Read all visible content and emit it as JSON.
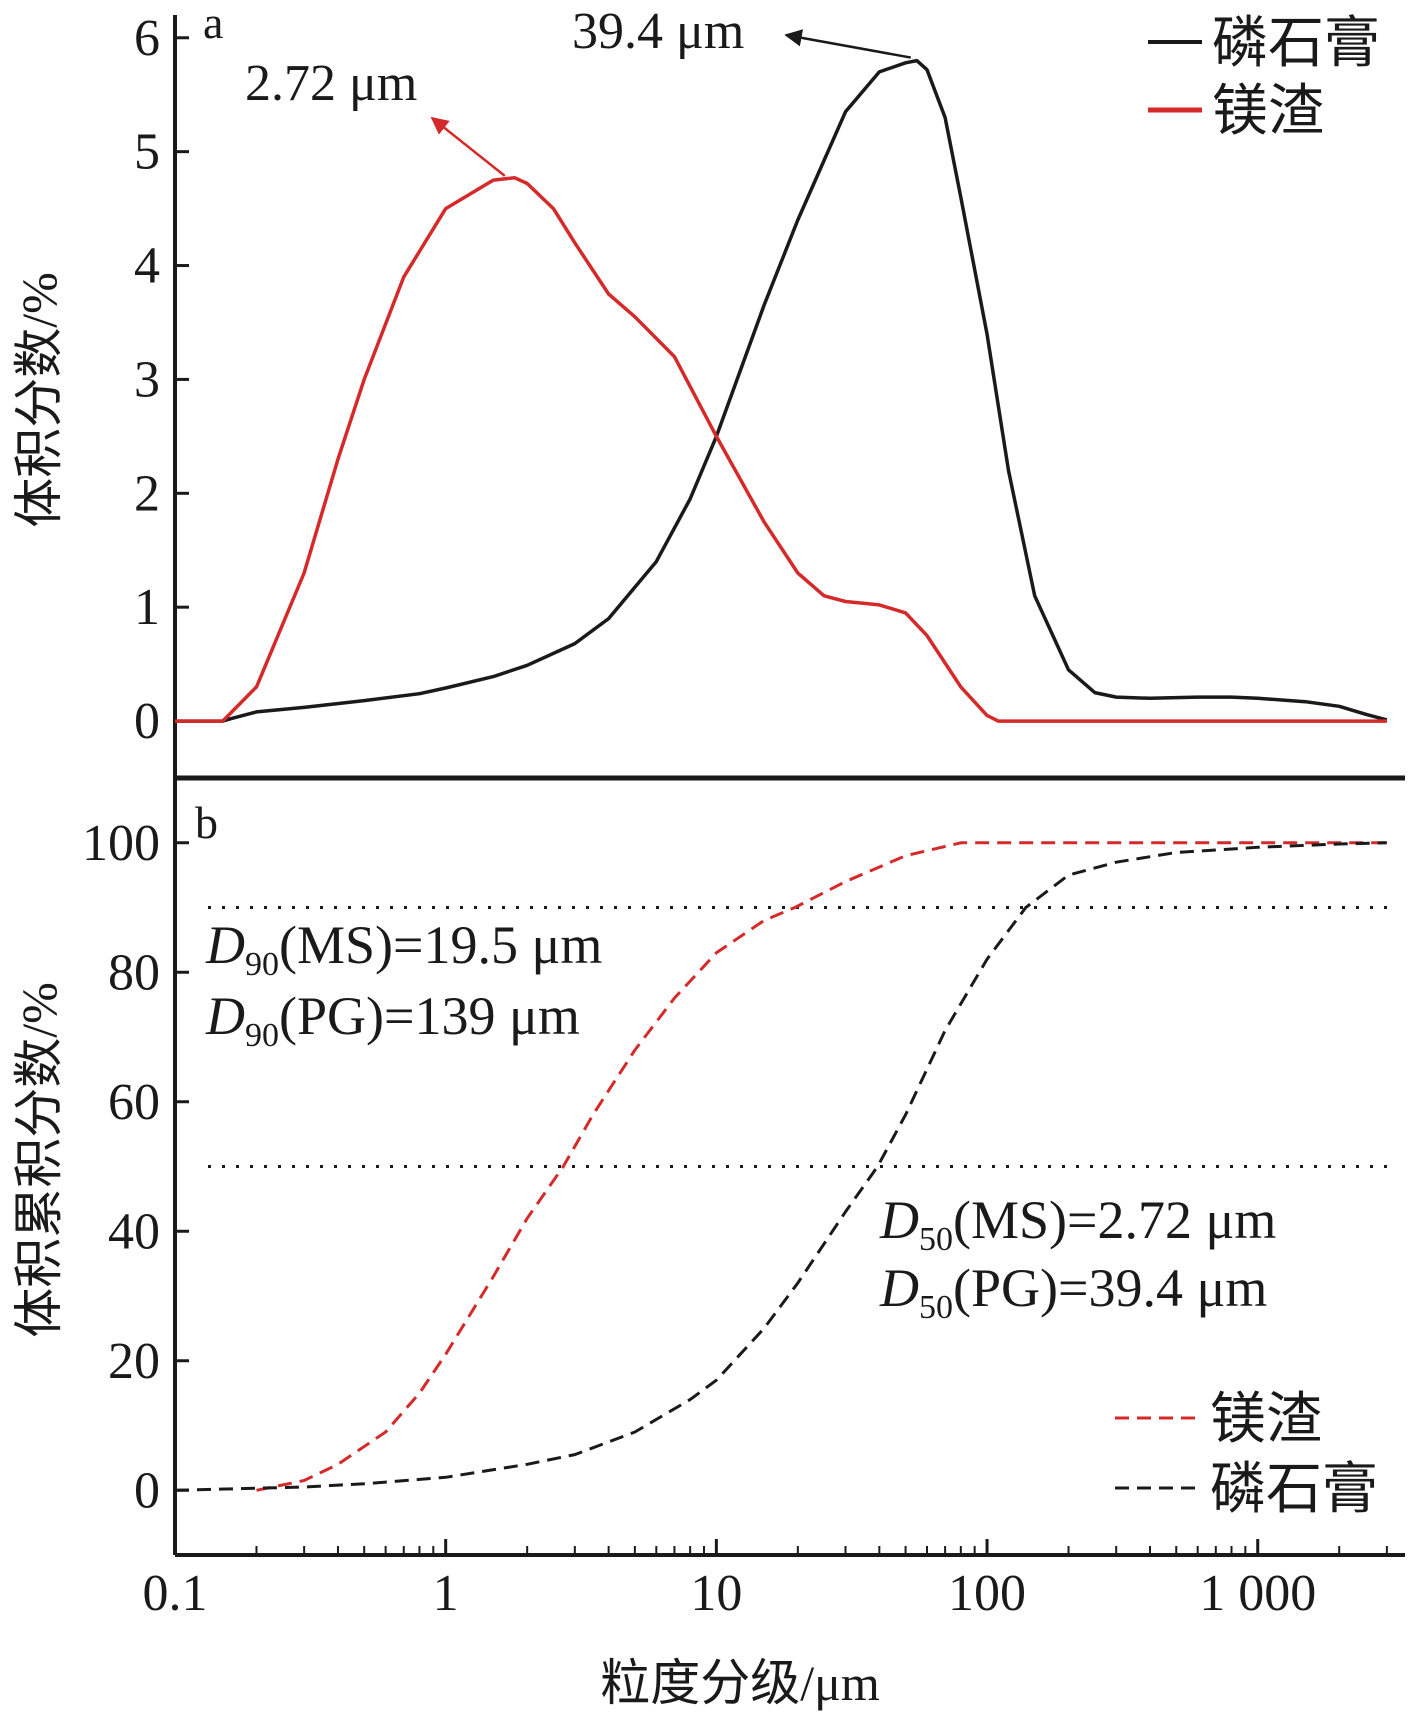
{
  "chart_data": [
    {
      "panel": "a",
      "type": "line",
      "x_scale": "log",
      "xlim": [
        0.1,
        3500
      ],
      "ylim": [
        -0.5,
        6.2
      ],
      "yticks": [
        0,
        1,
        2,
        3,
        4,
        5,
        6
      ],
      "ylabel": "体积分数/%",
      "legend_position": "top-right",
      "series": [
        {
          "name": "磷石膏",
          "color": "#1a1a1a",
          "style": "solid",
          "x": [
            0.1,
            0.15,
            0.16,
            0.2,
            0.3,
            0.5,
            0.8,
            1.0,
            1.5,
            2.0,
            3.0,
            4.0,
            6.0,
            8.0,
            10,
            15,
            20,
            30,
            40,
            50,
            55,
            60,
            70,
            80,
            100,
            120,
            150,
            200,
            250,
            300,
            400,
            600,
            800,
            1000,
            1500,
            2000,
            2500,
            3000
          ],
          "y": [
            0,
            0,
            0.02,
            0.08,
            0.12,
            0.18,
            0.24,
            0.29,
            0.39,
            0.49,
            0.68,
            0.9,
            1.4,
            1.95,
            2.5,
            3.65,
            4.4,
            5.35,
            5.7,
            5.78,
            5.8,
            5.72,
            5.3,
            4.6,
            3.4,
            2.2,
            1.1,
            0.45,
            0.25,
            0.21,
            0.2,
            0.21,
            0.21,
            0.2,
            0.17,
            0.13,
            0.06,
            0.01
          ]
        },
        {
          "name": "镁渣",
          "color": "#d42a2a",
          "style": "solid",
          "x": [
            0.1,
            0.15,
            0.2,
            0.3,
            0.4,
            0.5,
            0.7,
            1.0,
            1.5,
            1.8,
            2.0,
            2.5,
            3.0,
            4.0,
            5.0,
            7.0,
            10,
            15,
            20,
            25,
            30,
            40,
            50,
            60,
            80,
            100,
            110,
            150,
            300,
            1000,
            3000
          ],
          "y": [
            0,
            0,
            0.3,
            1.3,
            2.3,
            3.0,
            3.9,
            4.5,
            4.75,
            4.77,
            4.72,
            4.5,
            4.2,
            3.75,
            3.55,
            3.2,
            2.5,
            1.75,
            1.3,
            1.1,
            1.05,
            1.02,
            0.95,
            0.75,
            0.3,
            0.05,
            0,
            0,
            0,
            0,
            0
          ]
        }
      ],
      "annotations": [
        {
          "text": "2.72 μm",
          "target_x": 1.8,
          "target_y": 4.77,
          "color": "#d42a2a"
        },
        {
          "text": "39.4 μm",
          "target_x": 55,
          "target_y": 5.8,
          "color": "#1a1a1a"
        }
      ]
    },
    {
      "panel": "b",
      "type": "line",
      "x_scale": "log",
      "xlim": [
        0.1,
        3500
      ],
      "ylim": [
        -10,
        110
      ],
      "yticks": [
        0,
        20,
        40,
        60,
        80,
        100
      ],
      "xticks": [
        0.1,
        1,
        10,
        100,
        1000
      ],
      "xtick_labels": [
        "0.1",
        "1",
        "10",
        "100",
        "1 000"
      ],
      "xlabel": "粒度分级/μm",
      "ylabel": "体积累积分数/%",
      "legend_position": "bottom-right",
      "reference_lines": [
        50,
        90
      ],
      "series": [
        {
          "name": "镁渣",
          "color": "#d42a2a",
          "style": "dashed",
          "x": [
            0.2,
            0.3,
            0.4,
            0.6,
            0.8,
            1.0,
            1.5,
            2.0,
            2.72,
            3.5,
            5.0,
            7.0,
            10,
            15,
            19.5,
            30,
            50,
            80,
            100,
            1000,
            3000
          ],
          "y": [
            0,
            1.5,
            4,
            9,
            15,
            21,
            33,
            42,
            50,
            58,
            68,
            76,
            83,
            88,
            90,
            94,
            98,
            100,
            100,
            100,
            100
          ]
        },
        {
          "name": "磷石膏",
          "color": "#1a1a1a",
          "style": "dashed",
          "x": [
            0.1,
            0.3,
            0.5,
            1.0,
            2.0,
            3.0,
            5.0,
            8.0,
            10,
            15,
            20,
            30,
            39.4,
            50,
            70,
            100,
            139,
            200,
            300,
            500,
            1000,
            2000,
            3000
          ],
          "y": [
            0,
            0.5,
            1,
            2,
            4,
            5.5,
            9,
            14,
            17,
            25,
            32,
            43,
            50,
            58,
            71,
            82,
            90,
            95,
            97,
            98.5,
            99.3,
            99.8,
            100
          ]
        }
      ],
      "text_annotations": [
        {
          "metric": "90",
          "body": "(MS)=19.5 μm"
        },
        {
          "metric": "90",
          "body": "(PG)=139 μm"
        },
        {
          "metric": "50",
          "body": "(MS)=2.72 μm"
        },
        {
          "metric": "50",
          "body": "(PG)=39.4 μm"
        }
      ]
    }
  ]
}
